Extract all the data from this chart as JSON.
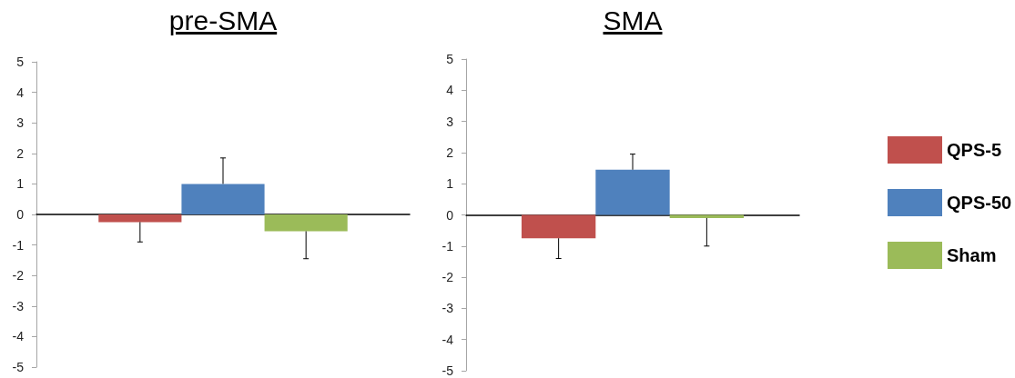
{
  "chart_data": [
    {
      "type": "bar",
      "title": "pre-SMA",
      "categories": [
        null
      ],
      "ylim": [
        -5,
        5
      ],
      "yticks": [
        -5,
        -4,
        -3,
        -2,
        -1,
        0,
        1,
        2,
        3,
        4,
        5
      ],
      "tick_labels": "y",
      "series": [
        {
          "color": "#c0504d",
          "values": [
            -0.25
          ],
          "errors": [
            [
              -0.9,
              -0.25
            ]
          ]
        },
        {
          "color": "#4f81bd",
          "values": [
            1.0
          ],
          "errors": [
            [
              1.0,
              1.85
            ]
          ]
        },
        {
          "color": "#9bbb59",
          "values": [
            -0.55
          ],
          "errors": [
            [
              -1.45,
              -0.55
            ]
          ]
        }
      ]
    },
    {
      "type": "bar",
      "title": "SMA",
      "categories": [
        null
      ],
      "ylim": [
        -5,
        5
      ],
      "yticks": [
        -5,
        -4,
        -3,
        -2,
        -1,
        0,
        1,
        2,
        3,
        4,
        5
      ],
      "legend": "right",
      "tick_labels": "y",
      "series": [
        {
          "name": "QPS-5",
          "color": "#c0504d",
          "values": [
            -0.75
          ],
          "errors": [
            [
              -1.4,
              -0.75
            ]
          ]
        },
        {
          "name": "QPS-50",
          "color": "#4f81bd",
          "values": [
            1.45
          ],
          "errors": [
            [
              1.45,
              1.95
            ]
          ]
        },
        {
          "name": "Sham",
          "color": "#9bbb59",
          "values": [
            -0.1
          ],
          "errors": [
            [
              -1.0,
              -0.1
            ]
          ]
        }
      ]
    }
  ]
}
